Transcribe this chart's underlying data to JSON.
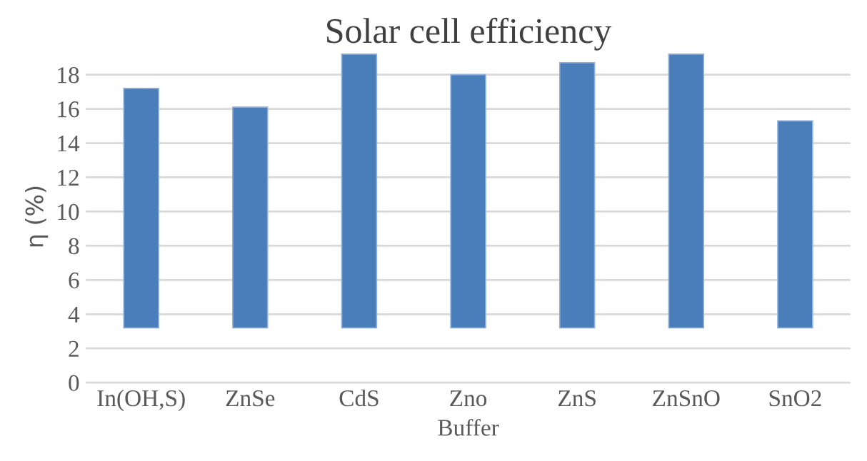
{
  "chart_data": {
    "type": "bar",
    "title": "Solar cell efficiency",
    "xlabel": "Buffer",
    "ylabel": "η (%)",
    "categories": [
      "In(OH,S)",
      "ZnSe",
      "CdS",
      "Zno",
      "ZnS",
      "ZnSnO",
      "SnO2"
    ],
    "values": [
      14.0,
      12.9,
      16.0,
      14.8,
      15.5,
      16.0,
      12.1
    ],
    "base": [
      3.2,
      3.2,
      3.2,
      3.2,
      3.2,
      3.2,
      3.2
    ],
    "color": "#4a7ebb",
    "ylim": [
      0,
      19.4
    ],
    "yticks": [
      0,
      2,
      4,
      6,
      8,
      10,
      12,
      14,
      16,
      18
    ],
    "grid": "y"
  }
}
